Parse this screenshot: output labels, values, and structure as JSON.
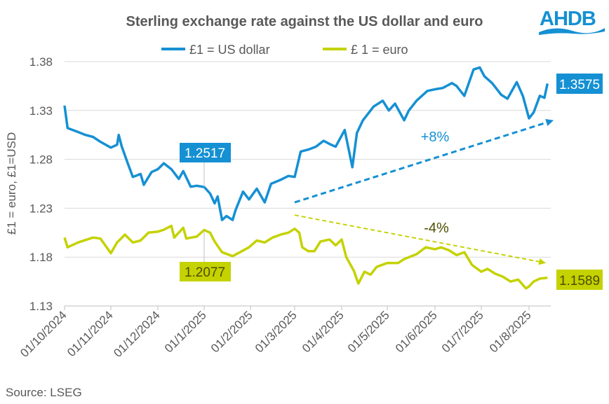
{
  "logo_text": "AHDB",
  "source": "Source: LSEG",
  "colors": {
    "usd": "#1590d3",
    "eur": "#c4d200",
    "eur_label_text": "#4d4d00",
    "grid": "#d9d9d9",
    "text": "#595959"
  },
  "chart_data": {
    "type": "line",
    "title": "Sterling exchange rate against the US dollar and euro",
    "ylabel": "£1 = euro, £1=USD",
    "xlabel": "",
    "ylim": [
      1.13,
      1.38
    ],
    "yticks": [
      "1.13",
      "1.18",
      "1.23",
      "1.28",
      "1.33",
      "1.38"
    ],
    "xlim": [
      "2024-10-01",
      "2025-08-13"
    ],
    "xticks": [
      {
        "date": "2024-10-01",
        "label": "01/10/2024"
      },
      {
        "date": "2024-11-01",
        "label": "01/11/2024"
      },
      {
        "date": "2024-12-01",
        "label": "01/12/2024"
      },
      {
        "date": "2025-01-01",
        "label": "01/1/2025"
      },
      {
        "date": "2025-02-01",
        "label": "01/2/2025"
      },
      {
        "date": "2025-03-01",
        "label": "01/3/2025"
      },
      {
        "date": "2025-04-01",
        "label": "01/4/2025"
      },
      {
        "date": "2025-05-01",
        "label": "01/5/2025"
      },
      {
        "date": "2025-06-01",
        "label": "01/6/2025"
      },
      {
        "date": "2025-07-01",
        "label": "01/7/2025"
      },
      {
        "date": "2025-08-01",
        "label": "01/8/2025"
      }
    ],
    "grid": true,
    "legend": "top-center",
    "series": [
      {
        "name": "£1 = US dollar",
        "key": "usd",
        "points": [
          [
            "2024-10-01",
            1.335
          ],
          [
            "2024-10-03",
            1.312
          ],
          [
            "2024-10-10",
            1.308
          ],
          [
            "2024-10-15",
            1.305
          ],
          [
            "2024-10-20",
            1.303
          ],
          [
            "2024-10-25",
            1.298
          ],
          [
            "2024-11-01",
            1.292
          ],
          [
            "2024-11-05",
            1.295
          ],
          [
            "2024-11-06",
            1.305
          ],
          [
            "2024-11-08",
            1.293
          ],
          [
            "2024-11-12",
            1.275
          ],
          [
            "2024-11-15",
            1.262
          ],
          [
            "2024-11-20",
            1.265
          ],
          [
            "2024-11-22",
            1.254
          ],
          [
            "2024-11-27",
            1.267
          ],
          [
            "2024-12-01",
            1.27
          ],
          [
            "2024-12-05",
            1.276
          ],
          [
            "2024-12-10",
            1.27
          ],
          [
            "2024-12-15",
            1.26
          ],
          [
            "2024-12-18",
            1.268
          ],
          [
            "2024-12-23",
            1.252
          ],
          [
            "2024-12-27",
            1.253
          ],
          [
            "2025-01-01",
            1.2517
          ],
          [
            "2025-01-05",
            1.245
          ],
          [
            "2025-01-08",
            1.235
          ],
          [
            "2025-01-10",
            1.242
          ],
          [
            "2025-01-13",
            1.218
          ],
          [
            "2025-01-16",
            1.222
          ],
          [
            "2025-01-20",
            1.218
          ],
          [
            "2025-01-22",
            1.228
          ],
          [
            "2025-01-27",
            1.247
          ],
          [
            "2025-01-31",
            1.239
          ],
          [
            "2025-02-05",
            1.25
          ],
          [
            "2025-02-10",
            1.236
          ],
          [
            "2025-02-14",
            1.255
          ],
          [
            "2025-02-20",
            1.259
          ],
          [
            "2025-02-25",
            1.263
          ],
          [
            "2025-03-01",
            1.262
          ],
          [
            "2025-03-05",
            1.288
          ],
          [
            "2025-03-10",
            1.29
          ],
          [
            "2025-03-15",
            1.293
          ],
          [
            "2025-03-20",
            1.299
          ],
          [
            "2025-03-25",
            1.295
          ],
          [
            "2025-03-28",
            1.293
          ],
          [
            "2025-04-03",
            1.31
          ],
          [
            "2025-04-08",
            1.272
          ],
          [
            "2025-04-11",
            1.307
          ],
          [
            "2025-04-15",
            1.32
          ],
          [
            "2025-04-22",
            1.334
          ],
          [
            "2025-04-28",
            1.34
          ],
          [
            "2025-05-02",
            1.33
          ],
          [
            "2025-05-06",
            1.337
          ],
          [
            "2025-05-12",
            1.32
          ],
          [
            "2025-05-15",
            1.33
          ],
          [
            "2025-05-20",
            1.34
          ],
          [
            "2025-05-27",
            1.35
          ],
          [
            "2025-06-02",
            1.352
          ],
          [
            "2025-06-06",
            1.353
          ],
          [
            "2025-06-12",
            1.358
          ],
          [
            "2025-06-15",
            1.355
          ],
          [
            "2025-06-20",
            1.345
          ],
          [
            "2025-06-26",
            1.372
          ],
          [
            "2025-06-30",
            1.374
          ],
          [
            "2025-07-03",
            1.365
          ],
          [
            "2025-07-08",
            1.358
          ],
          [
            "2025-07-14",
            1.346
          ],
          [
            "2025-07-18",
            1.342
          ],
          [
            "2025-07-24",
            1.359
          ],
          [
            "2025-07-28",
            1.345
          ],
          [
            "2025-08-01",
            1.322
          ],
          [
            "2025-08-04",
            1.328
          ],
          [
            "2025-08-08",
            1.345
          ],
          [
            "2025-08-11",
            1.343
          ],
          [
            "2025-08-13",
            1.3575
          ]
        ]
      },
      {
        "name": "£ 1 = euro",
        "key": "eur",
        "points": [
          [
            "2024-10-01",
            1.2
          ],
          [
            "2024-10-03",
            1.19
          ],
          [
            "2024-10-10",
            1.195
          ],
          [
            "2024-10-20",
            1.2
          ],
          [
            "2024-10-25",
            1.199
          ],
          [
            "2024-11-01",
            1.184
          ],
          [
            "2024-11-05",
            1.195
          ],
          [
            "2024-11-10",
            1.203
          ],
          [
            "2024-11-15",
            1.195
          ],
          [
            "2024-11-20",
            1.197
          ],
          [
            "2024-11-25",
            1.205
          ],
          [
            "2024-12-01",
            1.206
          ],
          [
            "2024-12-05",
            1.208
          ],
          [
            "2024-12-10",
            1.212
          ],
          [
            "2024-12-12",
            1.2
          ],
          [
            "2024-12-18",
            1.21
          ],
          [
            "2024-12-20",
            1.199
          ],
          [
            "2024-12-27",
            1.201
          ],
          [
            "2025-01-01",
            1.2077
          ],
          [
            "2025-01-05",
            1.205
          ],
          [
            "2025-01-08",
            1.196
          ],
          [
            "2025-01-13",
            1.185
          ],
          [
            "2025-01-20",
            1.181
          ],
          [
            "2025-01-25",
            1.185
          ],
          [
            "2025-01-31",
            1.19
          ],
          [
            "2025-02-05",
            1.197
          ],
          [
            "2025-02-10",
            1.195
          ],
          [
            "2025-02-15",
            1.2
          ],
          [
            "2025-02-20",
            1.203
          ],
          [
            "2025-02-25",
            1.205
          ],
          [
            "2025-03-01",
            1.209
          ],
          [
            "2025-03-04",
            1.205
          ],
          [
            "2025-03-06",
            1.19
          ],
          [
            "2025-03-10",
            1.186
          ],
          [
            "2025-03-14",
            1.186
          ],
          [
            "2025-03-18",
            1.196
          ],
          [
            "2025-03-24",
            1.198
          ],
          [
            "2025-03-28",
            1.192
          ],
          [
            "2025-04-01",
            1.198
          ],
          [
            "2025-04-04",
            1.18
          ],
          [
            "2025-04-09",
            1.166
          ],
          [
            "2025-04-12",
            1.153
          ],
          [
            "2025-04-16",
            1.165
          ],
          [
            "2025-04-20",
            1.162
          ],
          [
            "2025-04-24",
            1.17
          ],
          [
            "2025-05-01",
            1.174
          ],
          [
            "2025-05-08",
            1.174
          ],
          [
            "2025-05-12",
            1.178
          ],
          [
            "2025-05-20",
            1.183
          ],
          [
            "2025-05-26",
            1.19
          ],
          [
            "2025-06-01",
            1.188
          ],
          [
            "2025-06-05",
            1.19
          ],
          [
            "2025-06-10",
            1.187
          ],
          [
            "2025-06-15",
            1.182
          ],
          [
            "2025-06-20",
            1.185
          ],
          [
            "2025-06-25",
            1.172
          ],
          [
            "2025-07-01",
            1.165
          ],
          [
            "2025-07-05",
            1.168
          ],
          [
            "2025-07-10",
            1.163
          ],
          [
            "2025-07-15",
            1.16
          ],
          [
            "2025-07-20",
            1.155
          ],
          [
            "2025-07-25",
            1.157
          ],
          [
            "2025-07-30",
            1.148
          ],
          [
            "2025-08-01",
            1.15
          ],
          [
            "2025-08-04",
            1.155
          ],
          [
            "2025-08-08",
            1.158
          ],
          [
            "2025-08-13",
            1.1589
          ]
        ]
      }
    ],
    "annotations": {
      "callouts": [
        {
          "series": "usd",
          "date": "2025-01-01",
          "label": "1.2517"
        },
        {
          "series": "eur",
          "date": "2025-01-01",
          "label": "1.2077"
        }
      ],
      "end_labels": [
        {
          "series": "usd",
          "label": "1.3575"
        },
        {
          "series": "eur",
          "label": "1.1589"
        }
      ],
      "trend_arrows": [
        {
          "series": "usd",
          "from": [
            "2025-03-01",
            1.236
          ],
          "to": [
            "2025-08-17",
            1.32
          ],
          "label": "+8%"
        },
        {
          "series": "eur",
          "from": [
            "2025-03-01",
            1.223
          ],
          "to": [
            "2025-08-12",
            1.174
          ],
          "label": "-4%"
        }
      ]
    }
  }
}
